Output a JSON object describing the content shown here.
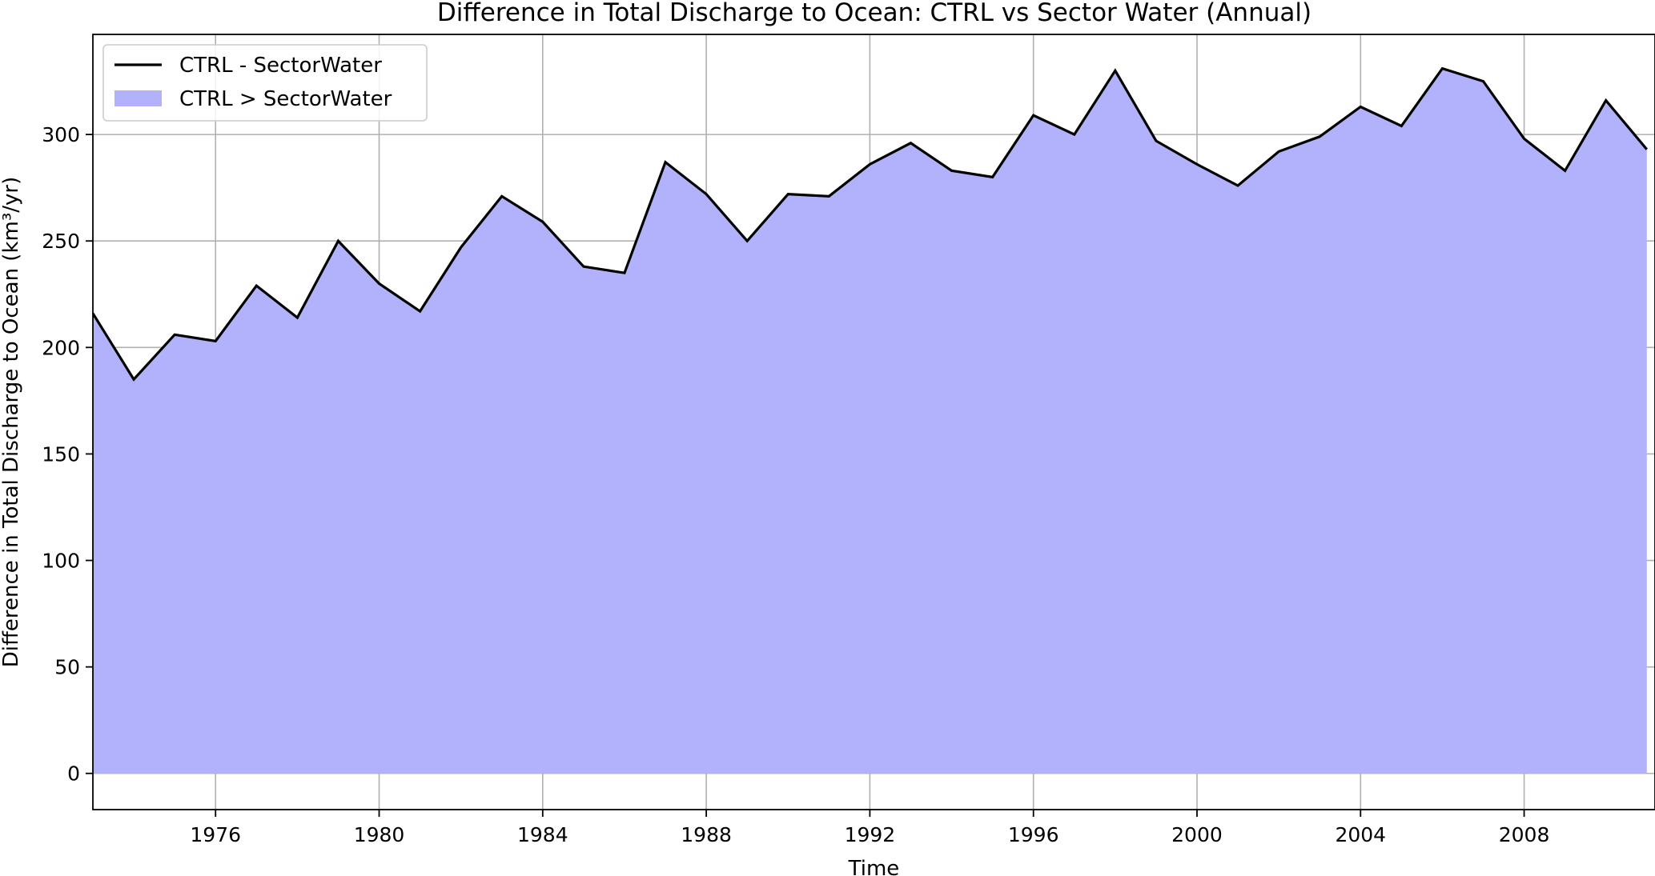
{
  "chart_data": {
    "type": "area",
    "title": "Difference in Total Discharge to Ocean: CTRL vs Sector Water (Annual)",
    "xlabel": "Time",
    "ylabel": "Difference in Total Discharge to Ocean (km³/yr)",
    "xlim": [
      1973,
      2011.2
    ],
    "ylim": [
      -17,
      347
    ],
    "x_ticks": [
      1976,
      1980,
      1984,
      1988,
      1992,
      1996,
      2000,
      2004,
      2008
    ],
    "y_ticks": [
      0,
      50,
      100,
      150,
      200,
      250,
      300
    ],
    "grid": true,
    "legend_position": "top-left",
    "colors": {
      "line": "#000000",
      "fill": "#b2b2fc",
      "grid": "#b0b0b0"
    },
    "legend": [
      {
        "label": "CTRL - SectorWater",
        "kind": "line"
      },
      {
        "label": "CTRL > SectorWater",
        "kind": "fill"
      }
    ],
    "series": [
      {
        "name": "CTRL - SectorWater",
        "x": [
          1973,
          1974,
          1975,
          1976,
          1977,
          1978,
          1979,
          1980,
          1981,
          1982,
          1983,
          1984,
          1985,
          1986,
          1987,
          1988,
          1989,
          1990,
          1991,
          1992,
          1993,
          1994,
          1995,
          1996,
          1997,
          1998,
          1999,
          2000,
          2001,
          2002,
          2003,
          2004,
          2005,
          2006,
          2007,
          2008,
          2009,
          2010,
          2011
        ],
        "values": [
          216,
          185,
          206,
          203,
          229,
          214,
          250,
          230,
          217,
          247,
          271,
          259,
          238,
          235,
          287,
          272,
          250,
          272,
          271,
          286,
          296,
          283,
          280,
          309,
          300,
          330,
          297,
          286,
          276,
          292,
          299,
          313,
          304,
          331,
          325,
          298,
          283,
          316,
          293
        ]
      }
    ]
  }
}
